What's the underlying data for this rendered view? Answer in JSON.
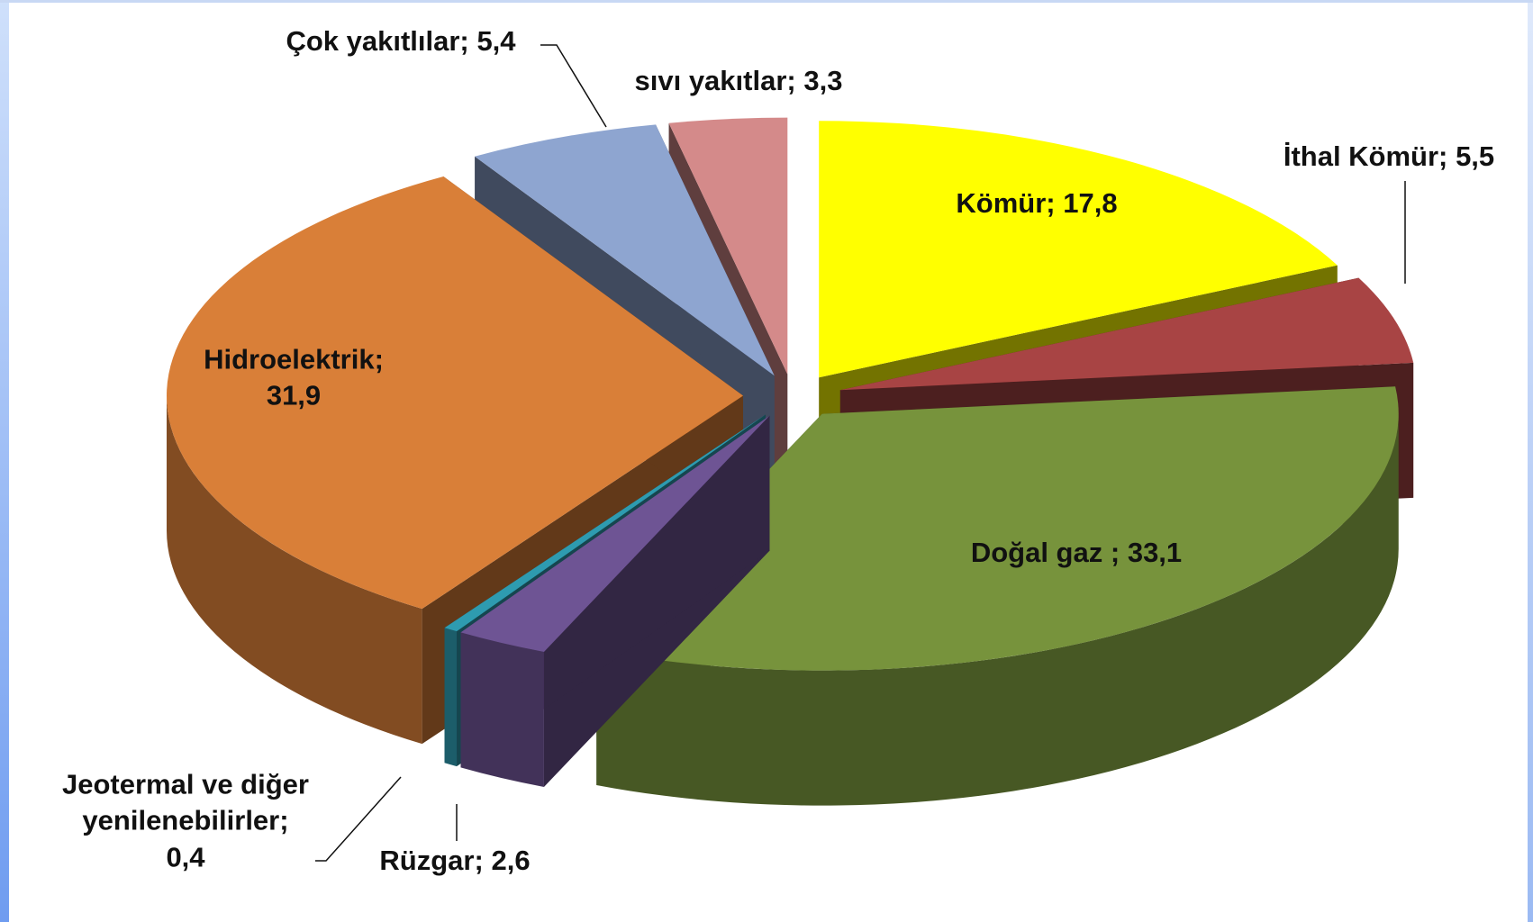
{
  "chart_data": {
    "type": "pie",
    "three_d": true,
    "exploded": true,
    "categories": [
      "Kömür;",
      "İthal Kömür;",
      "Doğal gaz ;",
      "Rüzgar;",
      "Jeotermal ve diğer yenilenebilirler;",
      "Hidroelektrik;",
      "Çok yakıtlılar;",
      "sıvı yakıtlar;"
    ],
    "values": [
      17.8,
      5.5,
      33.1,
      2.6,
      0.4,
      31.9,
      5.4,
      3.3
    ],
    "value_labels": [
      "17,8",
      "5,5",
      "33,1",
      "2,6",
      "0,4",
      "31,9",
      "5,4",
      "3,3"
    ],
    "colors": [
      "#ffff00",
      "#a84444",
      "#77933c",
      "#6e5494",
      "#2e9bb0",
      "#d97f38",
      "#8ea5d0",
      "#d48a8a"
    ]
  }
}
